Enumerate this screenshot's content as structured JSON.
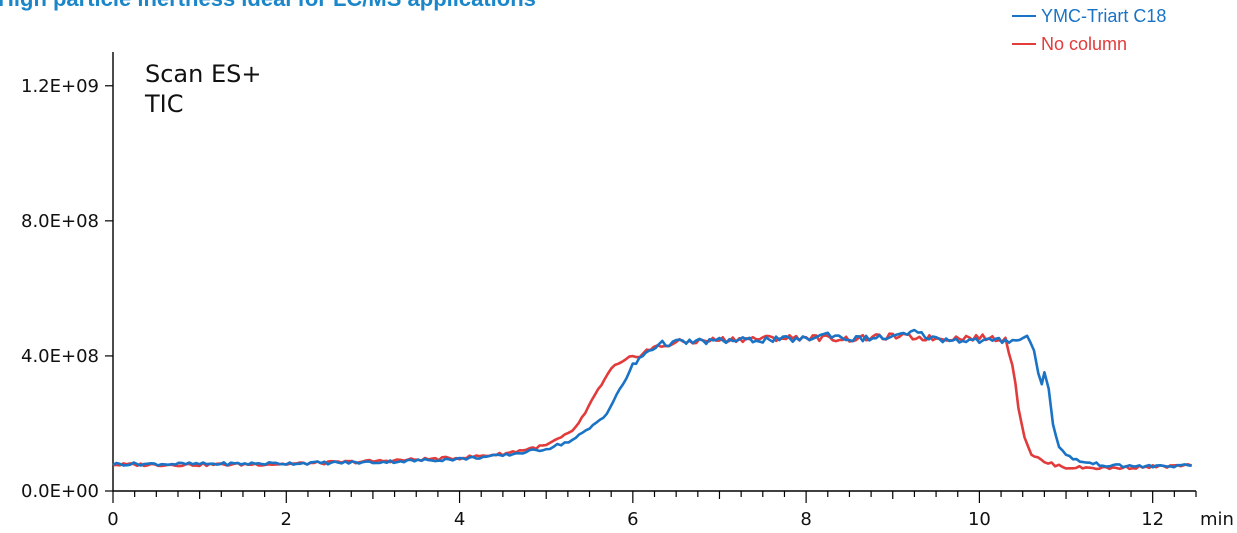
{
  "page": {
    "title": "High particle inertness ideal for LC/MS applications"
  },
  "chart_data": {
    "type": "line",
    "annotation": [
      "Scan ES+",
      "TIC"
    ],
    "xlabel": "min",
    "ylabel": "",
    "xlim": [
      0,
      12.5
    ],
    "ylim": [
      0,
      1300000000
    ],
    "x_ticks": [
      0,
      2,
      4,
      6,
      8,
      10,
      12
    ],
    "x_tick_labels": [
      "0",
      "2",
      "4",
      "6",
      "8",
      "10",
      "12"
    ],
    "y_ticks": [
      0,
      400000000,
      800000000,
      1200000000
    ],
    "y_tick_labels": [
      "0.0E+00",
      "4.0E+08",
      "8.0E+08",
      "1.2E+09"
    ],
    "legend_position": "top-right",
    "series": [
      {
        "name": "YMC-Triart C18",
        "color": "#1a73c5",
        "points": [
          [
            0.0,
            80000000
          ],
          [
            1.0,
            80000000
          ],
          [
            2.0,
            82000000
          ],
          [
            3.0,
            85000000
          ],
          [
            4.0,
            95000000
          ],
          [
            4.5,
            105000000
          ],
          [
            5.0,
            125000000
          ],
          [
            5.3,
            150000000
          ],
          [
            5.5,
            185000000
          ],
          [
            5.7,
            230000000
          ],
          [
            5.85,
            300000000
          ],
          [
            6.0,
            370000000
          ],
          [
            6.15,
            410000000
          ],
          [
            6.3,
            435000000
          ],
          [
            6.5,
            440000000
          ],
          [
            7.0,
            445000000
          ],
          [
            7.5,
            448000000
          ],
          [
            8.0,
            450000000
          ],
          [
            8.25,
            465000000
          ],
          [
            8.5,
            450000000
          ],
          [
            9.0,
            455000000
          ],
          [
            9.25,
            470000000
          ],
          [
            9.5,
            450000000
          ],
          [
            10.0,
            445000000
          ],
          [
            10.3,
            445000000
          ],
          [
            10.55,
            455000000
          ],
          [
            10.63,
            420000000
          ],
          [
            10.68,
            350000000
          ],
          [
            10.72,
            320000000
          ],
          [
            10.75,
            350000000
          ],
          [
            10.8,
            300000000
          ],
          [
            10.85,
            200000000
          ],
          [
            10.92,
            130000000
          ],
          [
            11.0,
            105000000
          ],
          [
            11.2,
            85000000
          ],
          [
            11.5,
            75000000
          ],
          [
            12.0,
            73000000
          ],
          [
            12.45,
            75000000
          ]
        ]
      },
      {
        "name": "No column",
        "color": "#e23b3b",
        "points": [
          [
            0.0,
            78000000
          ],
          [
            1.0,
            78000000
          ],
          [
            2.0,
            80000000
          ],
          [
            3.0,
            88000000
          ],
          [
            4.0,
            98000000
          ],
          [
            4.5,
            110000000
          ],
          [
            5.0,
            135000000
          ],
          [
            5.3,
            175000000
          ],
          [
            5.45,
            230000000
          ],
          [
            5.6,
            300000000
          ],
          [
            5.75,
            360000000
          ],
          [
            6.0,
            395000000
          ],
          [
            6.2,
            420000000
          ],
          [
            6.5,
            440000000
          ],
          [
            7.0,
            448000000
          ],
          [
            7.5,
            452000000
          ],
          [
            8.0,
            455000000
          ],
          [
            8.5,
            450000000
          ],
          [
            9.0,
            458000000
          ],
          [
            9.5,
            452000000
          ],
          [
            10.0,
            455000000
          ],
          [
            10.3,
            450000000
          ],
          [
            10.38,
            380000000
          ],
          [
            10.45,
            250000000
          ],
          [
            10.52,
            160000000
          ],
          [
            10.6,
            110000000
          ],
          [
            10.75,
            85000000
          ],
          [
            11.0,
            70000000
          ],
          [
            11.5,
            68000000
          ],
          [
            12.0,
            72000000
          ],
          [
            12.45,
            75000000
          ]
        ]
      }
    ]
  }
}
